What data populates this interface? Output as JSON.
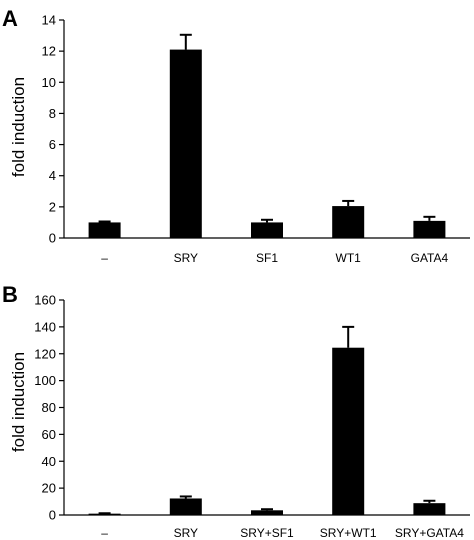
{
  "chart_data": [
    {
      "type": "bar",
      "panel": "A",
      "ylabel": "fold induction",
      "ylim": [
        0,
        14
      ],
      "yticks": [
        "0",
        "2",
        "4",
        "6",
        "8",
        "10",
        "12",
        "14"
      ],
      "categories": [
        "–",
        "SRY",
        "SF1",
        "WT1",
        "GATA4"
      ],
      "values": [
        1.0,
        12.1,
        1.0,
        2.05,
        1.1
      ],
      "errors": [
        0.06,
        0.95,
        0.17,
        0.33,
        0.26
      ],
      "bar_color": "#000000"
    },
    {
      "type": "bar",
      "panel": "B",
      "ylabel": "fold induction",
      "ylim": [
        0,
        160
      ],
      "yticks": [
        "0",
        "20",
        "40",
        "60",
        "80",
        "100",
        "120",
        "140",
        "160"
      ],
      "categories": [
        "–",
        "SRY",
        "SRY+SF1",
        "SRY+WT1",
        "SRY+GATA4"
      ],
      "values": [
        1.0,
        12.3,
        3.5,
        124.5,
        8.8
      ],
      "errors": [
        0.3,
        1.5,
        0.8,
        15.5,
        1.8
      ],
      "bar_color": "#000000"
    }
  ]
}
